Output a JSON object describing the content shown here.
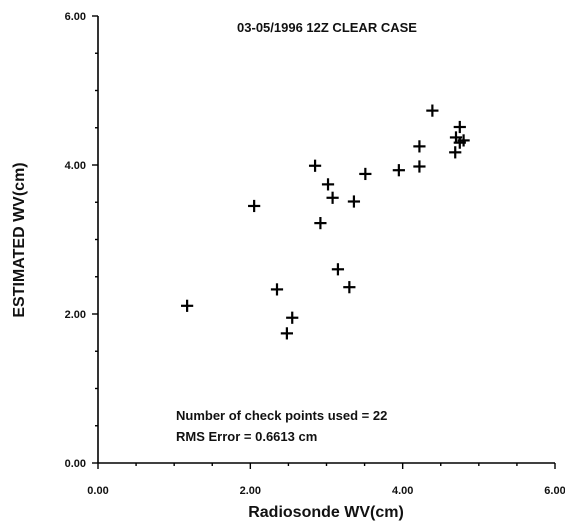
{
  "chart_data": {
    "type": "scatter",
    "title": "03-05/1996 12Z CLEAR CASE",
    "xlabel": "Radiosonde WV(cm)",
    "ylabel": "ESTIMATED WV(cm)",
    "xlim": [
      0,
      6
    ],
    "ylim": [
      0,
      6
    ],
    "xticks": [
      "0.00",
      "2.00",
      "4.00",
      "6.00"
    ],
    "yticks": [
      "0.00",
      "2.00",
      "4.00",
      "6.00"
    ],
    "marker": "plus",
    "grid": false,
    "annotations": [
      "Number of check points used = 22",
      "RMS Error = 0.6613 cm"
    ],
    "x": [
      1.17,
      2.05,
      2.35,
      2.48,
      2.55,
      2.85,
      2.92,
      3.02,
      3.08,
      3.15,
      3.3,
      3.36,
      3.51,
      3.95,
      4.22,
      4.22,
      4.39,
      4.69,
      4.7,
      4.75,
      4.75,
      4.8
    ],
    "y": [
      2.11,
      3.45,
      2.33,
      1.74,
      1.95,
      3.99,
      3.22,
      3.74,
      3.56,
      2.6,
      2.36,
      3.51,
      3.88,
      3.93,
      3.98,
      4.25,
      4.73,
      4.17,
      4.37,
      4.3,
      4.51,
      4.33
    ]
  }
}
